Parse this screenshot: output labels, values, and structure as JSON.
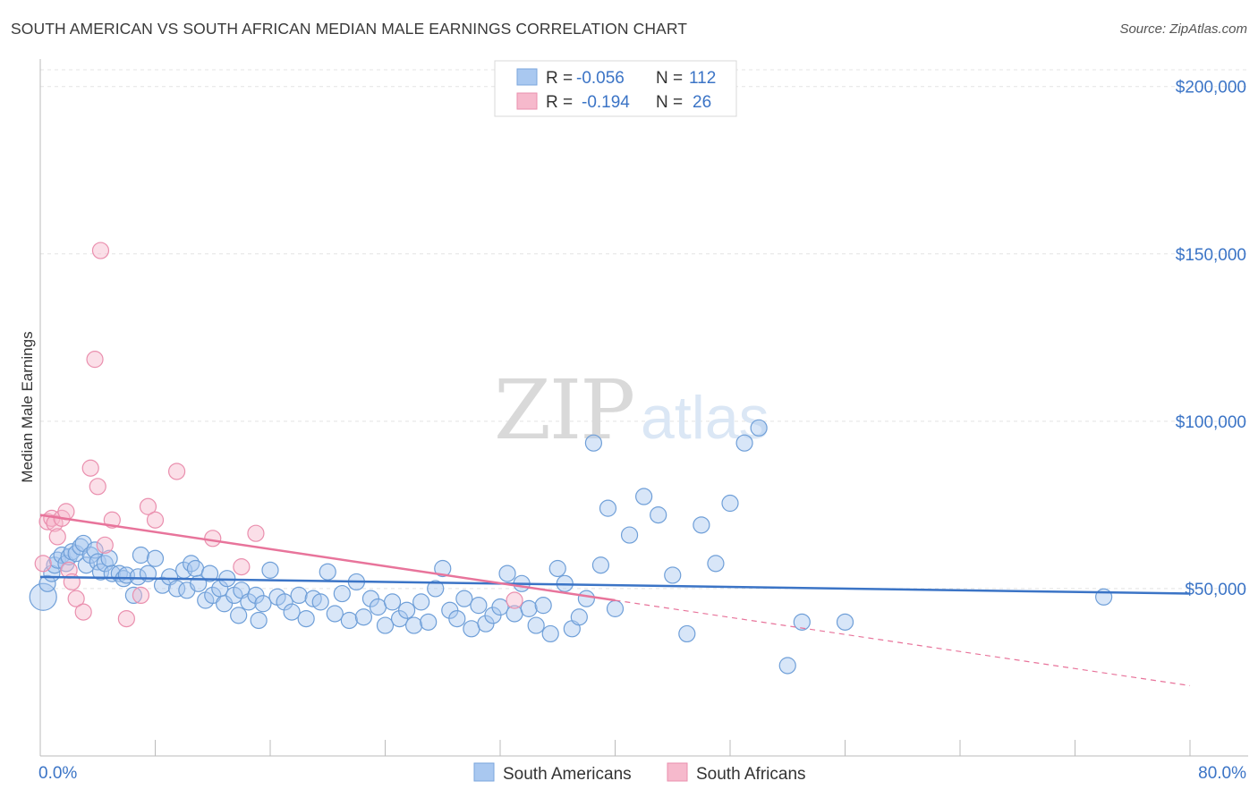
{
  "header": {
    "title": "SOUTH AMERICAN VS SOUTH AFRICAN MEDIAN MALE EARNINGS CORRELATION CHART",
    "source": "Source: ZipAtlas.com"
  },
  "watermark": {
    "part1": "ZIP",
    "part2": "atlas"
  },
  "legend_box": {
    "rows": [
      {
        "r_label": "R = ",
        "r_value": "-0.056",
        "n_label": "N = ",
        "n_value": "112",
        "color": "#a9c8f0"
      },
      {
        "r_label": "R = ",
        "r_value": "-0.194",
        "n_label": "N = ",
        "n_value": "26",
        "color": "#f6b9cc"
      }
    ]
  },
  "bottom_legend": {
    "items": [
      {
        "label": "South Americans",
        "color": "#a9c8f0"
      },
      {
        "label": "South Africans",
        "color": "#f6b9cc"
      }
    ]
  },
  "chart_data": {
    "type": "scatter",
    "title": "SOUTH AMERICAN VS SOUTH AFRICAN MEDIAN MALE EARNINGS CORRELATION CHART",
    "xlabel": "",
    "ylabel": "Median Male Earnings",
    "xlim": [
      0,
      80
    ],
    "ylim": [
      0,
      205000
    ],
    "x_tick_labels": [
      "0.0%",
      "80.0%"
    ],
    "y_ticks": [
      50000,
      100000,
      150000,
      200000
    ],
    "y_tick_labels": [
      "$50,000",
      "$100,000",
      "$150,000",
      "$200,000"
    ],
    "grid": true,
    "legend": "top-center",
    "colors": {
      "south_americans": "#3b74c6",
      "south_africans": "#e8749b"
    },
    "series": [
      {
        "name": "South Americans",
        "color": "#a9c8f0",
        "trend": {
          "x": [
            0,
            80
          ],
          "y": [
            53500,
            48500
          ]
        },
        "points": [
          [
            0.2,
            47500
          ],
          [
            0.5,
            51500
          ],
          [
            0.8,
            54500
          ],
          [
            1.0,
            57000
          ],
          [
            1.2,
            58500
          ],
          [
            1.5,
            60000
          ],
          [
            1.8,
            57500
          ],
          [
            2.0,
            59500
          ],
          [
            2.2,
            61000
          ],
          [
            2.5,
            60500
          ],
          [
            2.8,
            62500
          ],
          [
            3.0,
            63500
          ],
          [
            3.2,
            57000
          ],
          [
            3.5,
            60000
          ],
          [
            3.8,
            61500
          ],
          [
            4.0,
            58000
          ],
          [
            4.2,
            55000
          ],
          [
            4.5,
            57500
          ],
          [
            4.8,
            59000
          ],
          [
            5.0,
            54500
          ],
          [
            5.5,
            54500
          ],
          [
            5.8,
            53000
          ],
          [
            6.0,
            54000
          ],
          [
            6.5,
            48000
          ],
          [
            6.8,
            53500
          ],
          [
            7.0,
            60000
          ],
          [
            7.5,
            54500
          ],
          [
            8.0,
            59000
          ],
          [
            8.5,
            51000
          ],
          [
            9.0,
            53500
          ],
          [
            9.5,
            50000
          ],
          [
            10.0,
            55500
          ],
          [
            10.2,
            49500
          ],
          [
            10.5,
            57500
          ],
          [
            10.8,
            56000
          ],
          [
            11.0,
            51500
          ],
          [
            11.5,
            46500
          ],
          [
            11.8,
            54500
          ],
          [
            12.0,
            48000
          ],
          [
            12.5,
            50000
          ],
          [
            12.8,
            45500
          ],
          [
            13.0,
            53000
          ],
          [
            13.5,
            48000
          ],
          [
            13.8,
            42000
          ],
          [
            14.0,
            49500
          ],
          [
            14.5,
            46000
          ],
          [
            15.0,
            48000
          ],
          [
            15.2,
            40500
          ],
          [
            15.5,
            45500
          ],
          [
            16.0,
            55500
          ],
          [
            16.5,
            47500
          ],
          [
            17.0,
            46000
          ],
          [
            17.5,
            43000
          ],
          [
            18.0,
            48000
          ],
          [
            18.5,
            41000
          ],
          [
            19.0,
            47000
          ],
          [
            19.5,
            46000
          ],
          [
            20.0,
            55000
          ],
          [
            20.5,
            42500
          ],
          [
            21.0,
            48500
          ],
          [
            21.5,
            40500
          ],
          [
            22.0,
            52000
          ],
          [
            22.5,
            41500
          ],
          [
            23.0,
            47000
          ],
          [
            23.5,
            44500
          ],
          [
            24.0,
            39000
          ],
          [
            24.5,
            46000
          ],
          [
            25.0,
            41000
          ],
          [
            25.5,
            43500
          ],
          [
            26.0,
            39000
          ],
          [
            26.5,
            46000
          ],
          [
            27.0,
            40000
          ],
          [
            27.5,
            50000
          ],
          [
            28.0,
            56000
          ],
          [
            28.5,
            43500
          ],
          [
            29.0,
            41000
          ],
          [
            29.5,
            47000
          ],
          [
            30.0,
            38000
          ],
          [
            30.5,
            45000
          ],
          [
            31.0,
            39500
          ],
          [
            31.5,
            42000
          ],
          [
            32.0,
            44500
          ],
          [
            32.5,
            54500
          ],
          [
            33.0,
            42500
          ],
          [
            33.5,
            51500
          ],
          [
            34.0,
            44000
          ],
          [
            34.5,
            39000
          ],
          [
            35.0,
            45000
          ],
          [
            35.5,
            36500
          ],
          [
            36.0,
            56000
          ],
          [
            36.5,
            51500
          ],
          [
            37.0,
            38000
          ],
          [
            37.5,
            41500
          ],
          [
            38.0,
            47000
          ],
          [
            38.5,
            93500
          ],
          [
            39.0,
            57000
          ],
          [
            39.5,
            74000
          ],
          [
            40.0,
            44000
          ],
          [
            41.0,
            66000
          ],
          [
            42.0,
            77500
          ],
          [
            43.0,
            72000
          ],
          [
            44.0,
            54000
          ],
          [
            45.0,
            36500
          ],
          [
            46.0,
            69000
          ],
          [
            47.0,
            57500
          ],
          [
            48.0,
            75500
          ],
          [
            49.0,
            93500
          ],
          [
            50.0,
            98000
          ],
          [
            52.0,
            27000
          ],
          [
            53.0,
            40000
          ],
          [
            56.0,
            40000
          ],
          [
            74.0,
            47500
          ]
        ]
      },
      {
        "name": "South Africans",
        "color": "#f6b9cc",
        "trend": {
          "x": [
            0,
            40
          ],
          "y": [
            72000,
            46500
          ]
        },
        "trend_extension": {
          "x": [
            40,
            80
          ],
          "y": [
            46500,
            21000
          ]
        },
        "points": [
          [
            0.2,
            57500
          ],
          [
            0.5,
            70000
          ],
          [
            0.8,
            71000
          ],
          [
            1.0,
            69500
          ],
          [
            1.2,
            65500
          ],
          [
            1.5,
            71000
          ],
          [
            1.8,
            73000
          ],
          [
            2.0,
            55500
          ],
          [
            2.2,
            52000
          ],
          [
            2.5,
            47000
          ],
          [
            3.0,
            43000
          ],
          [
            3.5,
            86000
          ],
          [
            3.8,
            118500
          ],
          [
            4.0,
            80500
          ],
          [
            4.2,
            151000
          ],
          [
            4.5,
            63000
          ],
          [
            5.0,
            70500
          ],
          [
            6.0,
            41000
          ],
          [
            7.0,
            48000
          ],
          [
            7.5,
            74500
          ],
          [
            8.0,
            70500
          ],
          [
            9.5,
            85000
          ],
          [
            12.0,
            65000
          ],
          [
            14.0,
            56500
          ],
          [
            15.0,
            66500
          ],
          [
            33.0,
            46500
          ]
        ]
      }
    ]
  }
}
